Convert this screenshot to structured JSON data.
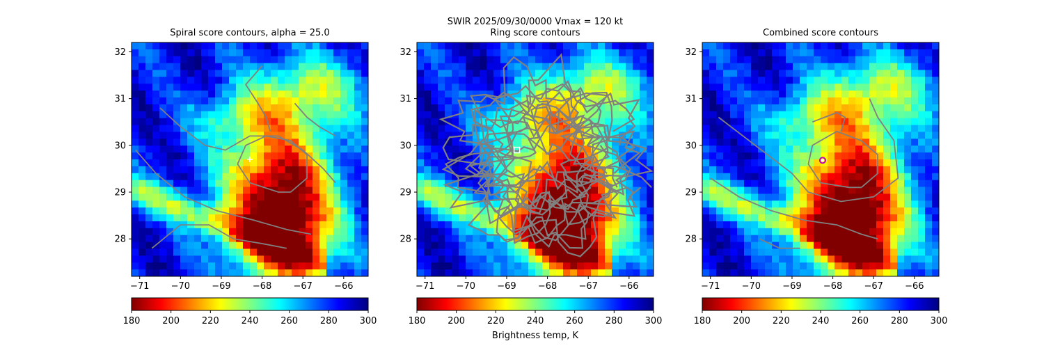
{
  "figure": {
    "suptitle_line1": "SWIR  2025/09/30/0000    Vmax = 120 kt",
    "colorbar_label": "Brightness temp, K",
    "colormap": [
      "#800000",
      "#ff0000",
      "#ff8000",
      "#ffff00",
      "#80ff80",
      "#00ffff",
      "#0080ff",
      "#0000ff",
      "#000080"
    ],
    "contour_color": "#808080",
    "marker_color_white": "#ffffff",
    "marker_color_magenta": "#c000c0"
  },
  "chart_data": [
    {
      "type": "heatmap",
      "title": "Spiral score contours, alpha = 25.0",
      "xlim": [
        -71.2,
        -65.4
      ],
      "ylim": [
        27.2,
        32.2
      ],
      "xticks": [
        -71,
        -70,
        -69,
        -68,
        -67,
        -66
      ],
      "yticks": [
        28,
        29,
        30,
        31,
        32
      ],
      "xtick_labels": [
        "−71",
        "−70",
        "−69",
        "−68",
        "−67",
        "−66"
      ],
      "ytick_labels": [
        "28",
        "29",
        "30",
        "31",
        "32"
      ],
      "marker": {
        "symbol": "plus",
        "lon": -68.3,
        "lat": 29.7
      },
      "colorbar": {
        "vmin": 180,
        "vmax": 300,
        "ticks": [
          180,
          200,
          220,
          240,
          260,
          280,
          300
        ],
        "tick_labels": [
          "180",
          "200",
          "220",
          "240",
          "260",
          "280",
          "300"
        ]
      }
    },
    {
      "type": "heatmap",
      "title": "Ring score contours",
      "xlim": [
        -71.2,
        -65.4
      ],
      "ylim": [
        27.2,
        32.2
      ],
      "xticks": [
        -71,
        -70,
        -69,
        -68,
        -67,
        -66
      ],
      "yticks": [
        28,
        29,
        30,
        31,
        32
      ],
      "xtick_labels": [
        "−71",
        "−70",
        "−69",
        "−68",
        "−67",
        "−66"
      ],
      "ytick_labels": [
        "28",
        "29",
        "30",
        "31",
        "32"
      ],
      "marker": {
        "symbol": "square",
        "lon": -68.75,
        "lat": 29.9
      },
      "colorbar": {
        "vmin": 180,
        "vmax": 300,
        "ticks": [
          180,
          200,
          220,
          240,
          260,
          280,
          300
        ],
        "tick_labels": [
          "180",
          "200",
          "220",
          "240",
          "260",
          "280",
          "300"
        ]
      }
    },
    {
      "type": "heatmap",
      "title": "Combined score contours",
      "xlim": [
        -71.2,
        -65.4
      ],
      "ylim": [
        27.2,
        32.2
      ],
      "xticks": [
        -71,
        -70,
        -69,
        -68,
        -67,
        -66
      ],
      "yticks": [
        28,
        29,
        30,
        31,
        32
      ],
      "xtick_labels": [
        "−71",
        "−70",
        "−69",
        "−68",
        "−67",
        "−66"
      ],
      "ytick_labels": [
        "28",
        "29",
        "30",
        "31",
        "32"
      ],
      "marker": {
        "symbol": "circle",
        "lon": -68.25,
        "lat": 29.68
      },
      "colorbar": {
        "vmin": 180,
        "vmax": 300,
        "ticks": [
          180,
          200,
          220,
          240,
          260,
          280,
          300
        ],
        "tick_labels": [
          "180",
          "200",
          "220",
          "240",
          "260",
          "280",
          "300"
        ]
      }
    }
  ]
}
